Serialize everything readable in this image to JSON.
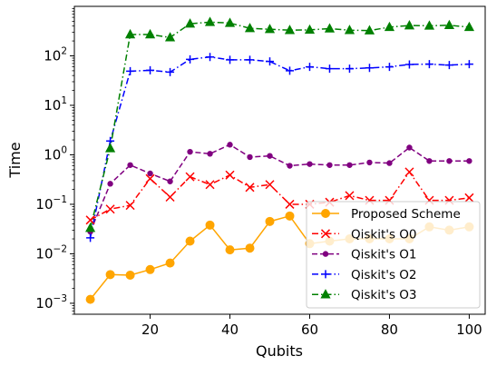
{
  "chart_data": {
    "type": "line",
    "title": "",
    "xlabel": "Qubits",
    "ylabel": "Time",
    "yscale": "log",
    "xlim": [
      1,
      104
    ],
    "ylim": [
      0.0006,
      1000
    ],
    "xticks": [
      20,
      40,
      60,
      80,
      100
    ],
    "xtick_labels": [
      "20",
      "40",
      "60",
      "80",
      "100"
    ],
    "yticks": [
      0.001,
      0.01,
      0.1,
      1,
      10,
      100
    ],
    "ytick_labels": [
      {
        "base": "10",
        "exp": "−3"
      },
      {
        "base": "10",
        "exp": "−2"
      },
      {
        "base": "10",
        "exp": "−1"
      },
      {
        "base": "10",
        "exp": "0"
      },
      {
        "base": "10",
        "exp": "1"
      },
      {
        "base": "10",
        "exp": "2"
      }
    ],
    "grid": false,
    "legend_position": "lower-right",
    "x": [
      5,
      10,
      15,
      20,
      25,
      30,
      35,
      40,
      45,
      50,
      55,
      60,
      65,
      70,
      75,
      80,
      85,
      90,
      95,
      100
    ],
    "series": [
      {
        "name": "Proposed Scheme",
        "color": "#ffa500",
        "marker": "circle",
        "linestyle": "solid",
        "values": [
          0.0012,
          0.0038,
          0.0037,
          0.0048,
          0.0065,
          0.018,
          0.038,
          0.012,
          0.013,
          0.045,
          0.058,
          0.016,
          0.018,
          0.02,
          0.02,
          0.02,
          0.02,
          0.035,
          0.03,
          0.035
        ]
      },
      {
        "name": "Qiskit's O0",
        "color": "#ff0000",
        "marker": "x",
        "linestyle": "dashdot",
        "values": [
          0.048,
          0.08,
          0.095,
          0.33,
          0.14,
          0.36,
          0.25,
          0.39,
          0.22,
          0.25,
          0.1,
          0.1,
          0.11,
          0.15,
          0.12,
          0.12,
          0.45,
          0.12,
          0.12,
          0.135
        ]
      },
      {
        "name": "Qiskit's O1",
        "color": "#800080",
        "marker": "dot",
        "linestyle": "dashed",
        "values": [
          0.028,
          0.26,
          0.62,
          0.42,
          0.29,
          1.15,
          1.05,
          1.6,
          0.9,
          0.95,
          0.6,
          0.65,
          0.62,
          0.62,
          0.7,
          0.68,
          1.4,
          0.75,
          0.75,
          0.75
        ]
      },
      {
        "name": "Qiskit's O2",
        "color": "#0000ff",
        "marker": "plus",
        "linestyle": "dashdot",
        "values": [
          0.021,
          1.9,
          49,
          51,
          47,
          85,
          95,
          83,
          83,
          77,
          50,
          60,
          55,
          55,
          57,
          60,
          67,
          68,
          65,
          68
        ]
      },
      {
        "name": "Qiskit's O3",
        "color": "#008000",
        "marker": "triangle",
        "linestyle": "dashdot",
        "values": [
          0.033,
          1.35,
          270,
          270,
          235,
          445,
          480,
          460,
          360,
          345,
          330,
          335,
          355,
          330,
          325,
          380,
          410,
          405,
          415,
          380
        ]
      }
    ]
  }
}
